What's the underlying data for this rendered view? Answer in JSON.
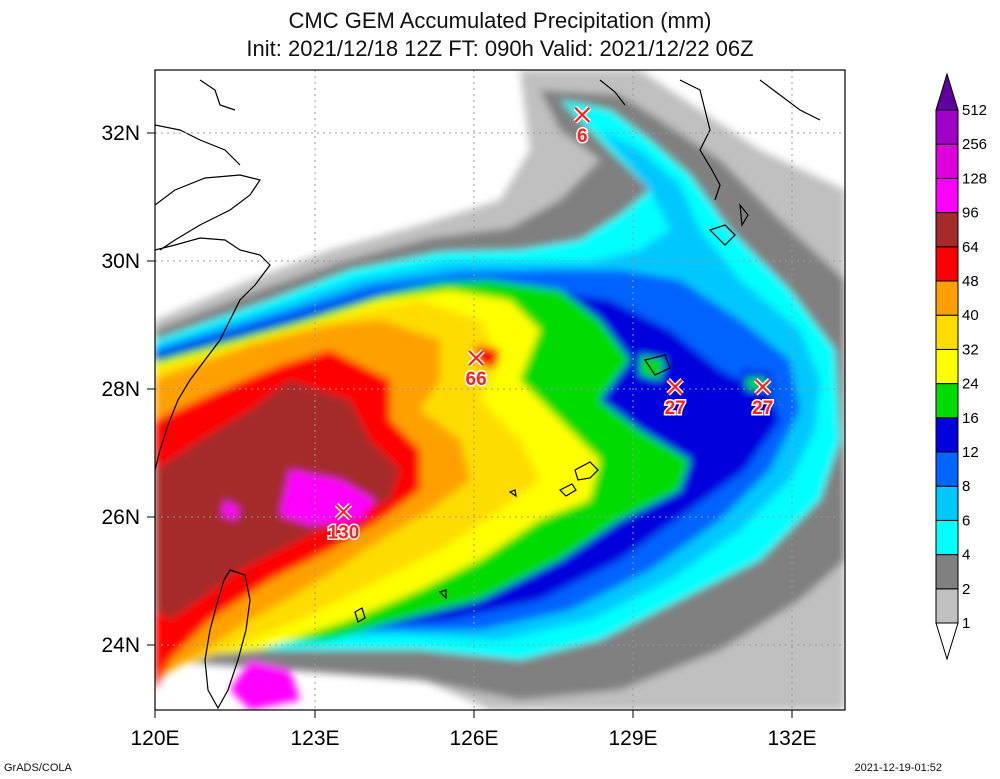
{
  "title_line1": "CMC GEM Accumulated Precipitation (mm)",
  "title_line2": "Init: 2021/12/18 12Z  FT: 090h  Valid: 2021/12/22 06Z",
  "lon_labels": [
    "120E",
    "123E",
    "126E",
    "129E",
    "132E"
  ],
  "lat_labels": [
    "32N",
    "30N",
    "28N",
    "26N",
    "24N"
  ],
  "colorbar": [
    {
      "label": "1",
      "color": "#ffffff"
    },
    {
      "label": "2",
      "color": "#c0c0c0"
    },
    {
      "label": "4",
      "color": "#808080"
    },
    {
      "label": "6",
      "color": "#00ffff"
    },
    {
      "label": "8",
      "color": "#00c8ff"
    },
    {
      "label": "12",
      "color": "#0064ff"
    },
    {
      "label": "16",
      "color": "#0000dc"
    },
    {
      "label": "24",
      "color": "#00dc00"
    },
    {
      "label": "32",
      "color": "#ffff00"
    },
    {
      "label": "40",
      "color": "#ffdc00"
    },
    {
      "label": "48",
      "color": "#ffa000"
    },
    {
      "label": "64",
      "color": "#ff0000"
    },
    {
      "label": "96",
      "color": "#a52a2a"
    },
    {
      "label": "128",
      "color": "#ff00ff"
    },
    {
      "label": "256",
      "color": "#dc00dc"
    },
    {
      "label": "512",
      "color": "#a000c8"
    },
    {
      "label": "",
      "color": "#6000a0"
    }
  ],
  "markers": [
    {
      "value": "6",
      "lon": 128.05,
      "lat": 32.3
    },
    {
      "value": "66",
      "lon": 126.05,
      "lat": 28.5
    },
    {
      "value": "27",
      "lon": 129.8,
      "lat": 28.05
    },
    {
      "value": "27",
      "lon": 131.45,
      "lat": 28.05
    },
    {
      "value": "130",
      "lon": 123.55,
      "lat": 26.1
    }
  ],
  "credit_left": "GrADS/COLA",
  "credit_right": "2021-12-19-01:52"
}
